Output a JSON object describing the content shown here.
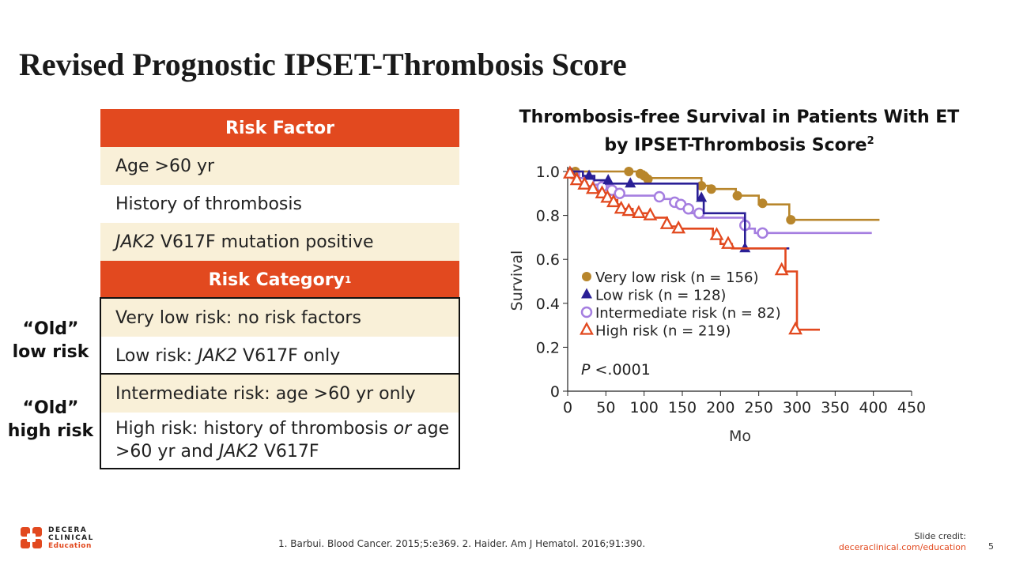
{
  "page": {
    "title": "Revised Prognostic IPSET-Thrombosis Score"
  },
  "table": {
    "header1": "Risk Factor",
    "factors": [
      "Age >60 yr",
      "History of thrombosis",
      "JAK2 V617F mutation positive"
    ],
    "header2": "Risk Category",
    "header2_sup": "1",
    "categories": [
      "Very low risk: no risk factors",
      "Low risk: JAK2 V617F only",
      "Intermediate risk: age >60 yr only",
      "High risk: history of thrombosis or age >60 yr and JAK2 V617F"
    ]
  },
  "side_labels": {
    "old_low_line1": "“Old”",
    "old_low_line2": "low risk",
    "old_high_line1": "“Old”",
    "old_high_line2": "high risk"
  },
  "chart_data": {
    "type": "line",
    "title": "Thrombosis-free Survival in Patients With ET by IPSET-Thrombosis Score",
    "title_line1": "Thrombosis-free Survival in Patients With ET",
    "title_line2": "by IPSET-Thrombosis Score",
    "title_sup": "2",
    "xlabel": "Mo",
    "ylabel": "Survival",
    "xlim": [
      0,
      450
    ],
    "ylim": [
      0,
      1.0
    ],
    "xticks": [
      0,
      50,
      100,
      150,
      200,
      250,
      300,
      350,
      400,
      450
    ],
    "yticks": [
      0,
      0.2,
      0.4,
      0.6,
      0.8,
      1.0
    ],
    "ytick_labels": [
      "0",
      "0.2",
      "0.4",
      "0.6",
      "0.8",
      "1.0"
    ],
    "annotation": "P <.0001",
    "legend_position": "center-left",
    "series": [
      {
        "name": "Very low risk (n = 156)",
        "color": "#b8862c",
        "marker": "circle-filled",
        "steps": [
          [
            0,
            1.0
          ],
          [
            100,
            1.0
          ],
          [
            100,
            0.985
          ],
          [
            105,
            0.985
          ],
          [
            105,
            0.97
          ],
          [
            175,
            0.97
          ],
          [
            175,
            0.935
          ],
          [
            185,
            0.935
          ],
          [
            185,
            0.92
          ],
          [
            220,
            0.92
          ],
          [
            220,
            0.89
          ],
          [
            250,
            0.89
          ],
          [
            250,
            0.85
          ],
          [
            290,
            0.85
          ],
          [
            290,
            0.78
          ],
          [
            408,
            0.78
          ]
        ],
        "markers": [
          [
            10,
            1.0
          ],
          [
            80,
            1.0
          ],
          [
            95,
            0.99
          ],
          [
            100,
            0.98
          ],
          [
            105,
            0.965
          ],
          [
            175,
            0.935
          ],
          [
            188,
            0.92
          ],
          [
            222,
            0.89
          ],
          [
            255,
            0.855
          ],
          [
            292,
            0.78
          ]
        ]
      },
      {
        "name": "Low risk (n = 128)",
        "color": "#2a1f96",
        "marker": "triangle-filled",
        "steps": [
          [
            0,
            1.0
          ],
          [
            20,
            1.0
          ],
          [
            20,
            0.98
          ],
          [
            35,
            0.98
          ],
          [
            35,
            0.96
          ],
          [
            50,
            0.96
          ],
          [
            50,
            0.945
          ],
          [
            170,
            0.945
          ],
          [
            170,
            0.875
          ],
          [
            178,
            0.875
          ],
          [
            178,
            0.81
          ],
          [
            232,
            0.81
          ],
          [
            232,
            0.65
          ],
          [
            290,
            0.65
          ]
        ],
        "markers": [
          [
            5,
            0.99
          ],
          [
            28,
            0.98
          ],
          [
            53,
            0.96
          ],
          [
            82,
            0.945
          ],
          [
            175,
            0.88
          ],
          [
            232,
            0.65
          ]
        ]
      },
      {
        "name": "Intermediate risk (n = 82)",
        "color": "#a57ee0",
        "marker": "circle-open",
        "steps": [
          [
            0,
            1.0
          ],
          [
            15,
            1.0
          ],
          [
            15,
            0.97
          ],
          [
            30,
            0.97
          ],
          [
            30,
            0.94
          ],
          [
            55,
            0.94
          ],
          [
            55,
            0.91
          ],
          [
            70,
            0.91
          ],
          [
            70,
            0.89
          ],
          [
            120,
            0.89
          ],
          [
            120,
            0.875
          ],
          [
            140,
            0.875
          ],
          [
            140,
            0.86
          ],
          [
            150,
            0.86
          ],
          [
            150,
            0.84
          ],
          [
            160,
            0.84
          ],
          [
            160,
            0.81
          ],
          [
            175,
            0.81
          ],
          [
            175,
            0.79
          ],
          [
            230,
            0.79
          ],
          [
            230,
            0.74
          ],
          [
            245,
            0.74
          ],
          [
            245,
            0.72
          ],
          [
            398,
            0.72
          ]
        ],
        "markers": [
          [
            28,
            0.955
          ],
          [
            45,
            0.93
          ],
          [
            58,
            0.915
          ],
          [
            68,
            0.9
          ],
          [
            120,
            0.885
          ],
          [
            140,
            0.86
          ],
          [
            148,
            0.85
          ],
          [
            158,
            0.83
          ],
          [
            172,
            0.81
          ],
          [
            232,
            0.755
          ],
          [
            255,
            0.72
          ]
        ]
      },
      {
        "name": "High risk (n = 219)",
        "color": "#e2491f",
        "marker": "triangle-open",
        "steps": [
          [
            0,
            1.0
          ],
          [
            5,
            1.0
          ],
          [
            5,
            0.97
          ],
          [
            15,
            0.97
          ],
          [
            15,
            0.95
          ],
          [
            25,
            0.95
          ],
          [
            25,
            0.93
          ],
          [
            35,
            0.93
          ],
          [
            35,
            0.91
          ],
          [
            45,
            0.91
          ],
          [
            45,
            0.89
          ],
          [
            55,
            0.89
          ],
          [
            55,
            0.87
          ],
          [
            65,
            0.87
          ],
          [
            65,
            0.85
          ],
          [
            70,
            0.85
          ],
          [
            70,
            0.83
          ],
          [
            85,
            0.83
          ],
          [
            85,
            0.81
          ],
          [
            110,
            0.81
          ],
          [
            110,
            0.79
          ],
          [
            130,
            0.79
          ],
          [
            130,
            0.75
          ],
          [
            145,
            0.75
          ],
          [
            145,
            0.74
          ],
          [
            190,
            0.74
          ],
          [
            190,
            0.7
          ],
          [
            200,
            0.7
          ],
          [
            200,
            0.67
          ],
          [
            215,
            0.67
          ],
          [
            215,
            0.65
          ],
          [
            285,
            0.65
          ],
          [
            285,
            0.545
          ],
          [
            300,
            0.545
          ],
          [
            300,
            0.28
          ],
          [
            330,
            0.28
          ]
        ],
        "markers": [
          [
            3,
            0.99
          ],
          [
            12,
            0.96
          ],
          [
            22,
            0.94
          ],
          [
            33,
            0.92
          ],
          [
            45,
            0.9
          ],
          [
            52,
            0.88
          ],
          [
            60,
            0.86
          ],
          [
            70,
            0.83
          ],
          [
            80,
            0.82
          ],
          [
            93,
            0.81
          ],
          [
            108,
            0.8
          ],
          [
            130,
            0.76
          ],
          [
            145,
            0.74
          ],
          [
            195,
            0.71
          ],
          [
            210,
            0.67
          ],
          [
            280,
            0.55
          ],
          [
            298,
            0.28
          ]
        ]
      }
    ]
  },
  "footer": {
    "references": "1. Barbui. Blood Cancer. 2015;5:e369. 2. Haider. Am J Hematol. 2016;91:390.",
    "credit_label": "Slide credit:",
    "credit_url": "deceraclinical.com/education",
    "page_number": "5",
    "logo_line1": "DECERA",
    "logo_line2": "CLINICAL",
    "logo_line3": "Education"
  },
  "colors": {
    "brand_orange": "#e2491f",
    "cream": "#f9f0d8"
  }
}
